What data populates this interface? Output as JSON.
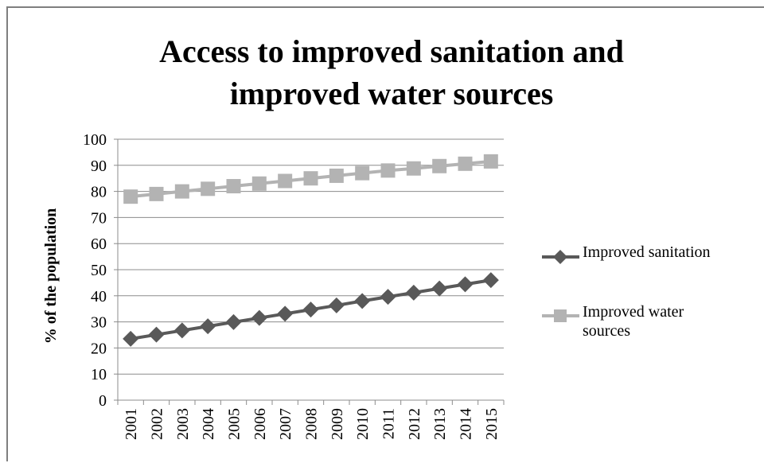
{
  "chart_data": {
    "type": "line",
    "title_lines": [
      "Access to improved sanitation and",
      "improved water sources"
    ],
    "xlabel": "",
    "ylabel": "% of the population",
    "ylim": [
      0,
      100
    ],
    "y_ticks": [
      "0",
      "10",
      "20",
      "30",
      "40",
      "50",
      "60",
      "70",
      "80",
      "90",
      "100"
    ],
    "categories": [
      "2001",
      "2002",
      "2003",
      "2004",
      "2005",
      "2006",
      "2007",
      "2008",
      "2009",
      "2010",
      "2011",
      "2012",
      "2013",
      "2014",
      "2015"
    ],
    "grid": true,
    "legend_position": "right",
    "series": [
      {
        "name": "Improved sanitation",
        "marker": "diamond",
        "color": "#595959",
        "values": [
          23.5,
          25.1,
          26.7,
          28.3,
          29.9,
          31.5,
          33.1,
          34.7,
          36.3,
          38.0,
          39.6,
          41.2,
          42.8,
          44.4,
          46.0
        ]
      },
      {
        "name_lines": [
          "Improved water",
          "sources"
        ],
        "marker": "square",
        "color": "#b3b3b3",
        "values": [
          78.0,
          79.0,
          80.0,
          81.0,
          82.0,
          83.0,
          84.0,
          85.0,
          86.0,
          87.0,
          88.0,
          88.8,
          89.7,
          90.6,
          91.5
        ]
      }
    ]
  }
}
